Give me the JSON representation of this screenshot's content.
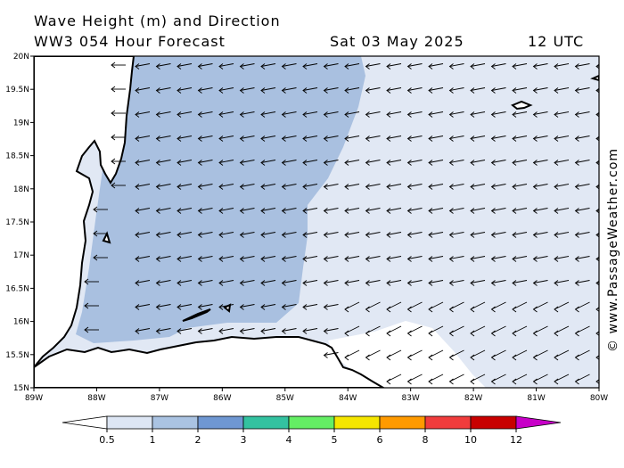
{
  "header": {
    "title": "Wave Height (m) and Direction",
    "subtitle": "WW3 054 Hour Forecast",
    "date": "Sat 03 May 2025",
    "time": "12 UTC"
  },
  "credit": "© www.PassageWeather.com",
  "axes": {
    "lat_labels": [
      "20N",
      "19.5N",
      "19N",
      "18.5N",
      "18N",
      "17.5N",
      "17N",
      "16.5N",
      "16N",
      "15.5N",
      "15N"
    ],
    "lon_labels": [
      "89W",
      "88W",
      "87W",
      "86W",
      "85W",
      "84W",
      "83W",
      "82W",
      "81W",
      "80W"
    ]
  },
  "colorbar": {
    "ticks": [
      "0.5",
      "1",
      "2",
      "3",
      "4",
      "5",
      "6",
      "8",
      "10",
      "12"
    ],
    "colors": [
      "#dde6f4",
      "#aac3e2",
      "#6f97d2",
      "#33c2a0",
      "#64ee64",
      "#f5e600",
      "#ff9a00",
      "#f03c3c",
      "#c80000",
      "#c800c8"
    ]
  },
  "wave_field": {
    "bands": [
      {
        "range": "0.5-1",
        "color": "#e1e8f4"
      },
      {
        "range": "1-2",
        "color": "#a9c0e0"
      },
      {
        "range": "below 0.5",
        "color": "#ffffff"
      }
    ],
    "arrow_direction": "westward"
  }
}
